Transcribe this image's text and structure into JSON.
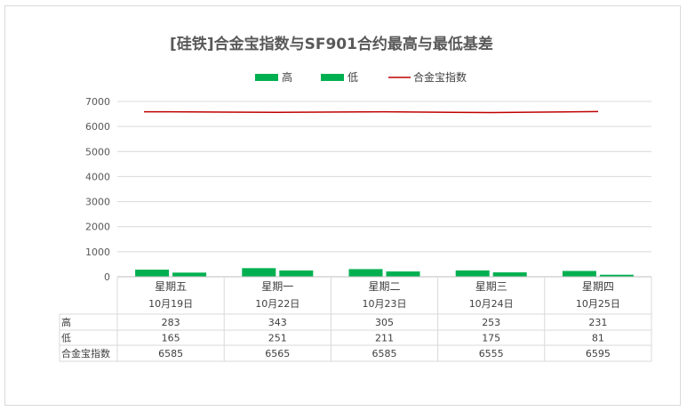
{
  "chart_data": {
    "type": "bar+line",
    "title": "[硅铁]合金宝指数与SF901合约最高与最低基差",
    "categories": [
      {
        "day": "星期五",
        "date": "10月19日"
      },
      {
        "day": "星期一",
        "date": "10月22日"
      },
      {
        "day": "星期二",
        "date": "10月23日"
      },
      {
        "day": "星期三",
        "date": "10月24日"
      },
      {
        "day": "星期四",
        "date": "10月25日"
      }
    ],
    "series": [
      {
        "name": "高",
        "type": "bar",
        "color": "#00b050",
        "values": [
          283,
          343,
          305,
          253,
          231
        ]
      },
      {
        "name": "低",
        "type": "bar",
        "color": "#00b050",
        "values": [
          165,
          251,
          211,
          175,
          81
        ]
      },
      {
        "name": "合金宝指数",
        "type": "line",
        "color": "#c00000",
        "values": [
          6585,
          6565,
          6585,
          6555,
          6595
        ]
      }
    ],
    "ylim": [
      0,
      7000
    ],
    "yticks": [
      0,
      1000,
      2000,
      3000,
      4000,
      5000,
      6000,
      7000
    ],
    "grid": true,
    "legend_position": "top",
    "data_table": true
  }
}
